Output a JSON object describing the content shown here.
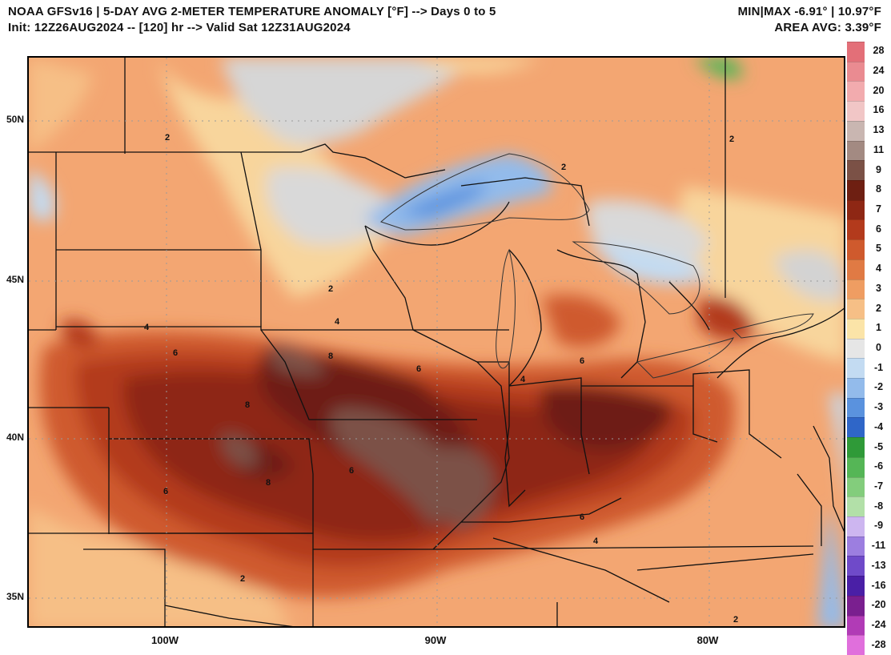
{
  "header": {
    "title_line1": "NOAA GFSv16 |  5-DAY AVG 2-METER TEMPERATURE ANOMALY [°F] --> Days 0 to 5",
    "title_line2": "Init: 12Z26AUG2024 -- [120] hr --> Valid Sat 12Z31AUG2024",
    "stats_line1": "MIN|MAX -6.91° | 10.97°F",
    "stats_line2": "AREA AVG: 3.39°F"
  },
  "axes": {
    "lat_labels": [
      "50N",
      "45N",
      "40N",
      "35N"
    ],
    "lon_labels": [
      "100W",
      "90W",
      "80W"
    ]
  },
  "colorbar": {
    "labels": [
      "28",
      "24",
      "20",
      "16",
      "13",
      "11",
      "9",
      "8",
      "7",
      "6",
      "5",
      "4",
      "3",
      "2",
      "1",
      "0",
      "-1",
      "-2",
      "-3",
      "-4",
      "-5",
      "-6",
      "-7",
      "-8",
      "-9",
      "-11",
      "-13",
      "-16",
      "-20",
      "-24",
      "-28"
    ],
    "colors": [
      "#e36f78",
      "#ea8b91",
      "#f2abae",
      "#f1c6c6",
      "#c9b6b1",
      "#a38a82",
      "#7b5146",
      "#6e1f12",
      "#8e2714",
      "#b33a1c",
      "#cf5a2d",
      "#e07a44",
      "#ef9d62",
      "#f6bf86",
      "#fbe4a8",
      "#e6e6e6",
      "#c3dbf2",
      "#93bbeb",
      "#5a92de",
      "#2f66c8",
      "#2f9a38",
      "#55b656",
      "#83cd7c",
      "#b2e0a8",
      "#cdb6f0",
      "#9c7ee0",
      "#6f4ac9",
      "#4a1fa6",
      "#7a1f8f",
      "#b13bb6",
      "#e06fdc"
    ]
  },
  "contour_labels": [
    "2",
    "2",
    "2",
    "4",
    "4",
    "6",
    "6",
    "6",
    "8",
    "8",
    "8",
    "6",
    "4",
    "6",
    "6",
    "2",
    "4",
    "2",
    "2"
  ],
  "colors": {
    "base_warm": "#f3a672",
    "anomaly_max": "#7b5146",
    "anomaly_cool": "#5a92de"
  }
}
